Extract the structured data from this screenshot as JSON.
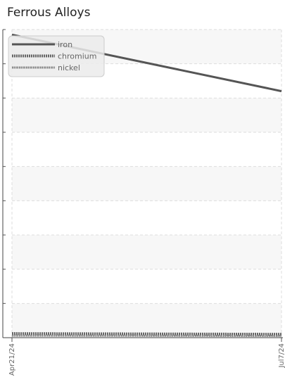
{
  "chart_data": {
    "type": "line",
    "title": "Ferrous Alloys",
    "xlabel": "",
    "ylabel": "",
    "x": [
      "Apr21/24",
      "Jul7/24"
    ],
    "ylim": [
      0,
      9
    ],
    "grid": true,
    "legend_position": "top-left",
    "series": [
      {
        "name": "iron",
        "style": "solid",
        "color": "#555555",
        "values": [
          8.85,
          7.2
        ]
      },
      {
        "name": "chromium",
        "style": "dotted-thick",
        "color": "#666666",
        "values": [
          0.12,
          0.1
        ]
      },
      {
        "name": "nickel",
        "style": "dotted-thin",
        "color": "#777777",
        "values": [
          0.06,
          0.05
        ]
      }
    ]
  }
}
